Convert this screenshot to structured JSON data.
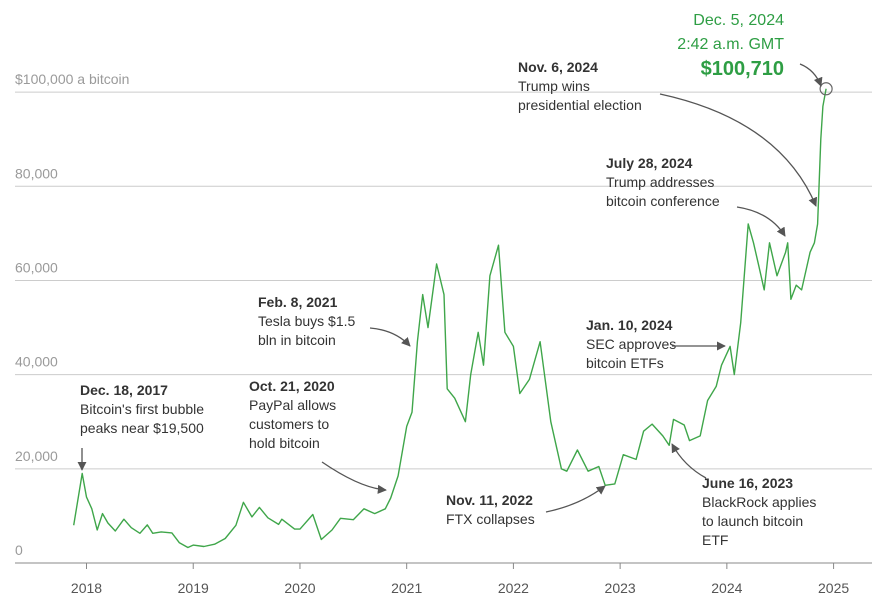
{
  "chart_data": {
    "type": "line",
    "color": "#3fa64a",
    "grid": true,
    "xlim": [
      2017.33,
      2025.36
    ],
    "xticks": [
      2018,
      2019,
      2020,
      2021,
      2022,
      2023,
      2024,
      2025
    ],
    "ylim": [
      0,
      118500
    ],
    "yticks": [
      0,
      {
        "value": 20000,
        "label": "20,000"
      },
      {
        "value": 40000,
        "label": "40,000"
      },
      {
        "value": 60000,
        "label": "60,000"
      },
      {
        "value": 80000,
        "label": "80,000"
      },
      {
        "value": 100000,
        "label": "$100,000 a bitcoin"
      }
    ],
    "x": [
      2017.88,
      2017.96,
      2018.0,
      2018.05,
      2018.1,
      2018.15,
      2018.2,
      2018.27,
      2018.35,
      2018.42,
      2018.5,
      2018.57,
      2018.62,
      2018.7,
      2018.8,
      2018.87,
      2018.95,
      2019.0,
      2019.1,
      2019.2,
      2019.3,
      2019.4,
      2019.47,
      2019.55,
      2019.62,
      2019.7,
      2019.8,
      2019.83,
      2019.95,
      2020.0,
      2020.12,
      2020.2,
      2020.3,
      2020.38,
      2020.5,
      2020.6,
      2020.7,
      2020.8,
      2020.85,
      2020.92,
      2021.0,
      2021.05,
      2021.1,
      2021.15,
      2021.2,
      2021.28,
      2021.35,
      2021.38,
      2021.45,
      2021.55,
      2021.6,
      2021.67,
      2021.72,
      2021.78,
      2021.86,
      2021.92,
      2022.0,
      2022.06,
      2022.15,
      2022.25,
      2022.35,
      2022.45,
      2022.5,
      2022.6,
      2022.7,
      2022.8,
      2022.86,
      2022.95,
      2023.03,
      2023.15,
      2023.22,
      2023.3,
      2023.4,
      2023.46,
      2023.5,
      2023.6,
      2023.65,
      2023.75,
      2023.82,
      2023.9,
      2023.95,
      2024.03,
      2024.07,
      2024.13,
      2024.2,
      2024.25,
      2024.3,
      2024.35,
      2024.4,
      2024.47,
      2024.55,
      2024.57,
      2024.6,
      2024.65,
      2024.7,
      2024.78,
      2024.82,
      2024.85,
      2024.88,
      2024.9,
      2024.93
    ],
    "values": [
      8000,
      19000,
      14000,
      11500,
      7000,
      10500,
      8500,
      6800,
      9300,
      7500,
      6300,
      8100,
      6300,
      6600,
      6400,
      4300,
      3300,
      3800,
      3500,
      4000,
      5200,
      8000,
      12900,
      9800,
      11800,
      9600,
      8200,
      9300,
      7200,
      7200,
      10300,
      5000,
      7000,
      9500,
      9200,
      11500,
      10500,
      11500,
      13800,
      18500,
      29000,
      32000,
      47000,
      57000,
      50000,
      63500,
      57000,
      37000,
      35000,
      30000,
      40000,
      49000,
      42000,
      61000,
      67500,
      49000,
      46000,
      36000,
      39000,
      47000,
      30000,
      20000,
      19500,
      24000,
      19500,
      20500,
      16500,
      16800,
      23000,
      22000,
      28000,
      29500,
      27000,
      25000,
      30500,
      29300,
      26000,
      27000,
      34500,
      37500,
      42000,
      46000,
      40000,
      51000,
      72000,
      68000,
      63000,
      58000,
      68000,
      61000,
      66000,
      68000,
      56000,
      59000,
      58000,
      66000,
      68000,
      72000,
      90000,
      97000,
      100710
    ],
    "highlight": {
      "date": "Dec. 5, 2024",
      "time": "2:42 a.m. GMT",
      "value": 100710,
      "value_label": "$100,710"
    },
    "annotations": [
      {
        "date": "Dec. 18, 2017",
        "lines": [
          "Bitcoin's first bubble",
          "peaks near $19,500"
        ]
      },
      {
        "date": "Oct. 21, 2020",
        "lines": [
          "PayPal allows",
          "customers to",
          "hold bitcoin"
        ]
      },
      {
        "date": "Feb. 8, 2021",
        "lines": [
          "Tesla buys $1.5",
          "bln in bitcoin"
        ]
      },
      {
        "date": "Nov. 11, 2022",
        "lines": [
          "FTX collapses"
        ]
      },
      {
        "date": "June 16, 2023",
        "lines": [
          "BlackRock applies",
          "to launch bitcoin",
          "ETF"
        ]
      },
      {
        "date": "Jan. 10, 2024",
        "lines": [
          "SEC approves",
          "bitcoin ETFs"
        ]
      },
      {
        "date": "July 28, 2024",
        "lines": [
          "Trump addresses",
          "bitcoin conference"
        ]
      },
      {
        "date": "Nov. 6, 2024",
        "lines": [
          "Trump wins",
          "presidential election"
        ]
      }
    ]
  }
}
